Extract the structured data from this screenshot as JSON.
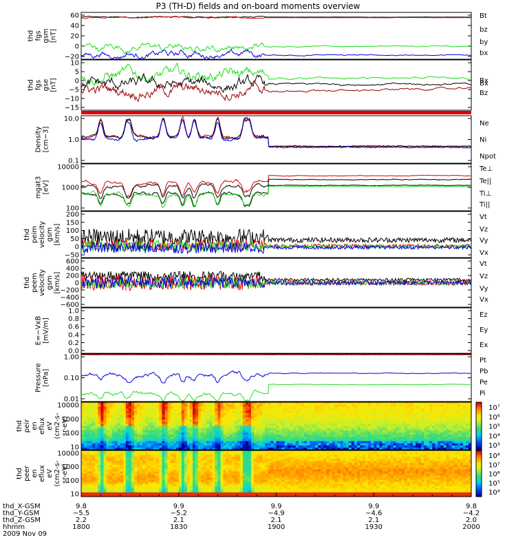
{
  "title": "P3 (TH-D) fields and on-board moments overview",
  "colors": {
    "black": "#000000",
    "red": "#e00000",
    "green": "#22dd22",
    "blue": "#0000dd",
    "darkred": "#990000"
  },
  "chart_data": [
    {
      "type": "line",
      "id": "fgs_gsm",
      "ylabel": [
        "thd",
        "fgs",
        "gsm",
        "[nT]"
      ],
      "yticks": [
        "60",
        "40",
        "20",
        "0",
        "−20"
      ],
      "ylim": [
        -20,
        60
      ],
      "series": [
        {
          "name": "Bt",
          "color": "#000000"
        },
        {
          "name": "bz",
          "color": "#e00000"
        },
        {
          "name": "by",
          "color": "#22dd22"
        },
        {
          "name": "bx",
          "color": "#0000dd"
        }
      ]
    },
    {
      "type": "line",
      "id": "fgs_gse",
      "ylabel": [
        "thd",
        "fgs",
        "gse",
        "[nT]"
      ],
      "yticks": [
        "10",
        "5",
        "0",
        "−5",
        "−10",
        "−15"
      ],
      "ylim": [
        -18,
        12
      ],
      "series": [
        {
          "name": "Bx",
          "color": "#22dd22"
        },
        {
          "name": "Bx",
          "color": "#000000"
        },
        {
          "name": "Bz",
          "color": "#990000"
        }
      ]
    },
    {
      "type": "line",
      "id": "density",
      "log": true,
      "ylabel": [
        "Density",
        "[cm−3]"
      ],
      "yticks": [
        "10.0",
        "1.0",
        "0.1"
      ],
      "series": [
        {
          "name": "Ne",
          "color": "#e00000"
        },
        {
          "name": "Ni",
          "color": "#000000"
        },
        {
          "name": "Npot",
          "color": "#0000dd"
        }
      ]
    },
    {
      "type": "line",
      "id": "temperature",
      "log": true,
      "ylabel": [
        "mgat3",
        "[eV]"
      ],
      "yticks": [
        "10000",
        "1000",
        "100"
      ],
      "series": [
        {
          "name": "Te⊥",
          "color": "#e00000"
        },
        {
          "name": "Te||",
          "color": "#000000"
        },
        {
          "name": "Ti⊥",
          "color": "#000000"
        },
        {
          "name": "Ti||",
          "color": "#22dd22"
        }
      ]
    },
    {
      "type": "line",
      "id": "peim_velocity",
      "ylabel": [
        "thd",
        "peim",
        "velocity",
        "gsm",
        "[km/s]"
      ],
      "yticks": [
        "200",
        "150",
        "100",
        "50",
        "0",
        "−50"
      ],
      "ylim": [
        -60,
        200
      ],
      "series": [
        {
          "name": "Vt",
          "color": "#000000"
        },
        {
          "name": "Vz",
          "color": "#e00000"
        },
        {
          "name": "Vy",
          "color": "#22dd22"
        },
        {
          "name": "Vx",
          "color": "#0000dd"
        }
      ]
    },
    {
      "type": "line",
      "id": "peem_velocity",
      "ylabel": [
        "thd",
        "peem",
        "velocity",
        "gsm",
        "[km/s]"
      ],
      "yticks": [
        "600",
        "400",
        "200",
        "0",
        "−200",
        "−400",
        "−600"
      ],
      "ylim": [
        -600,
        600
      ],
      "series": [
        {
          "name": "Vt",
          "color": "#000000"
        },
        {
          "name": "Vz",
          "color": "#e00000"
        },
        {
          "name": "Vy",
          "color": "#22dd22"
        },
        {
          "name": "Vx",
          "color": "#0000dd"
        }
      ]
    },
    {
      "type": "line",
      "id": "efield",
      "ylabel": [
        "E=−VxB",
        "[mV/m]"
      ],
      "yticks": [
        "1.0",
        "0.8",
        "0.6",
        "0.4",
        "0.2",
        "0.0"
      ],
      "ylim": [
        0,
        1
      ],
      "series": [
        {
          "name": "Ez",
          "color": "#e00000"
        },
        {
          "name": "Ey",
          "color": "#22dd22"
        },
        {
          "name": "Ex",
          "color": "#0000dd"
        }
      ]
    },
    {
      "type": "line",
      "id": "pressure",
      "log": true,
      "ylabel": [
        "Pressure",
        "[nPa]"
      ],
      "yticks": [
        "1.00",
        "0.10",
        "0.01"
      ],
      "series": [
        {
          "name": "Pt",
          "color": "#000000"
        },
        {
          "name": "Pb",
          "color": "#e00000"
        },
        {
          "name": "Pe",
          "color": "#22dd22"
        },
        {
          "name": "Pi",
          "color": "#0000dd"
        }
      ]
    },
    {
      "type": "heatmap",
      "id": "peir_spec",
      "ylabel": [
        "thd",
        "peir",
        "en",
        "eflux",
        "eV",
        "(cm2-s-",
        "sr-eV)"
      ],
      "yticks": [
        "10000",
        "1000",
        "100",
        "10"
      ],
      "colorbar": [
        "10⁷",
        "10⁶",
        "10⁵",
        "10⁴",
        "10³"
      ]
    },
    {
      "type": "heatmap",
      "id": "peer_spec",
      "ylabel": [
        "thd",
        "peer",
        "en",
        "eflux",
        "eV",
        "(cm2-s-",
        "sr-eV)"
      ],
      "yticks": [
        "10000",
        "1000",
        "100",
        "10"
      ],
      "colorbar": [
        "10⁸",
        "10⁷",
        "10⁶",
        "10⁵",
        "10⁴"
      ]
    }
  ],
  "xaxis": {
    "rows": [
      {
        "label": "thd_X-GSM",
        "values": [
          "9.8",
          "9.9",
          "9.9",
          "9.9",
          "9.8"
        ]
      },
      {
        "label": "thd_Y-GSM",
        "values": [
          "−5.5",
          "−5.2",
          "−4.9",
          "−4.6",
          "−4.2"
        ]
      },
      {
        "label": "thd_Z-GSM",
        "values": [
          "2.2",
          "2.1",
          "2.1",
          "2.1",
          "2.0"
        ]
      },
      {
        "label": "hhmm",
        "values": [
          "1800",
          "1830",
          "1900",
          "1930",
          "2000"
        ]
      }
    ],
    "date": "2009 Nov 09"
  }
}
